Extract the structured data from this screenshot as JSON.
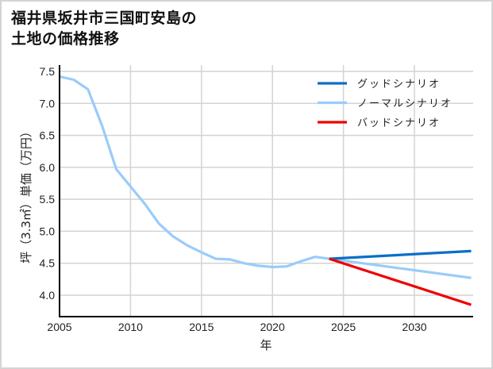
{
  "title": {
    "line1": "福井県坂井市三国町安島の",
    "line2": "土地の価格推移"
  },
  "axes": {
    "xlabel": "年",
    "ylabel": "坪（3.3㎡）単価（万円）"
  },
  "colors": {
    "good": "#0a6fc7",
    "normal": "#99ccfa",
    "bad": "#ee0000",
    "grid": "#d3d3d3",
    "axis": "#000000"
  },
  "legend": [
    {
      "label": "グッドシナリオ",
      "color": "#0a6fc7"
    },
    {
      "label": "ノーマルシナリオ",
      "color": "#99ccfa"
    },
    {
      "label": "バッドシナリオ",
      "color": "#ee0000"
    }
  ],
  "chart_data": {
    "type": "line",
    "title": "福井県坂井市三国町安島の土地の価格推移",
    "xlabel": "年",
    "ylabel": "坪（3.3㎡）単価（万円）",
    "xlim": [
      2005,
      2034
    ],
    "ylim": [
      3.67,
      7.56
    ],
    "xticks": [
      2005,
      2010,
      2015,
      2020,
      2025,
      2030
    ],
    "yticks": [
      4.0,
      4.5,
      5.0,
      5.5,
      6.0,
      6.5,
      7.0,
      7.5
    ],
    "grid": true,
    "legend_position": "upper right",
    "series": [
      {
        "name": "ノーマルシナリオ",
        "color": "#99ccfa",
        "x": [
          2005,
          2006,
          2007,
          2008,
          2009,
          2010,
          2011,
          2012,
          2013,
          2014,
          2015,
          2016,
          2017,
          2018,
          2019,
          2020,
          2021,
          2022,
          2023,
          2024,
          2034
        ],
        "values": [
          7.42,
          7.37,
          7.22,
          6.65,
          5.97,
          5.7,
          5.43,
          5.12,
          4.92,
          4.78,
          4.67,
          4.57,
          4.56,
          4.5,
          4.46,
          4.44,
          4.45,
          4.53,
          4.6,
          4.57,
          4.27
        ]
      },
      {
        "name": "グッドシナリオ",
        "color": "#0a6fc7",
        "x": [
          2024,
          2034
        ],
        "values": [
          4.57,
          4.69
        ]
      },
      {
        "name": "バッドシナリオ",
        "color": "#ee0000",
        "x": [
          2024,
          2034
        ],
        "values": [
          4.57,
          3.85
        ]
      }
    ]
  }
}
